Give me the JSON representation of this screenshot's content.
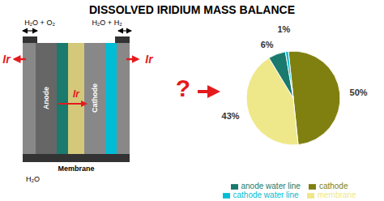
{
  "chart_data": {
    "type": "pie",
    "title": "DISSOLVED IRIDIUM MASS BALANCE",
    "categories": [
      "cathode",
      "membrane",
      "anode water line",
      "cathode water line"
    ],
    "values": [
      50,
      43,
      6,
      1
    ],
    "value_labels": [
      "50%",
      "43%",
      "6%",
      "1%"
    ],
    "colors": [
      "#808010",
      "#eee88a",
      "#1a7a6e",
      "#00bcd4"
    ],
    "data_labels": true,
    "legend": "bottom",
    "annotations": [
      "Anode",
      "Cathode",
      "Membrane",
      "H₂O + O₂",
      "H₂O + H₂",
      "H₂O",
      "Ir",
      "Ir",
      "Ir",
      "?"
    ]
  }
}
